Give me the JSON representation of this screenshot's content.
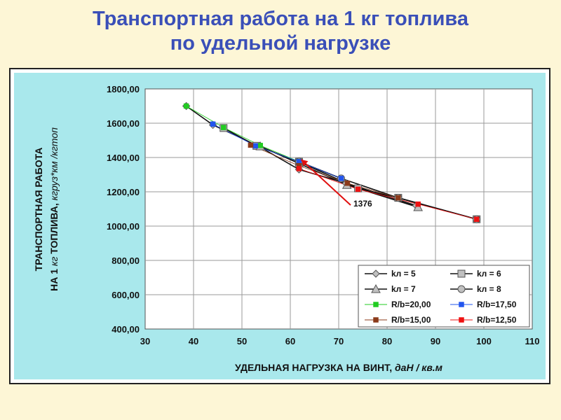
{
  "slide": {
    "title_line1": "Транспортная работа на 1 кг топлива",
    "title_line2": "по удельной нагрузке"
  },
  "chart_data": {
    "type": "line",
    "xlabel_main": "УДЕЛЬНАЯ НАГРУЗКА НА ВИНТ, ",
    "xlabel_unit": "даН / кв.м",
    "ylabel_line1": "ТРАНСПОРТНАЯ РАБОТА",
    "ylabel_line2_main": "НА 1 ",
    "ylabel_line2_unit1": "кг",
    "ylabel_line2_mid": " ТОПЛИВА, ",
    "ylabel_line2_unit2": "кгруз*км /кгтоп",
    "xlim": [
      30,
      110
    ],
    "ylim": [
      400,
      1800
    ],
    "xticks": [
      30,
      40,
      50,
      60,
      70,
      80,
      90,
      100,
      110
    ],
    "yticks": [
      400,
      600,
      800,
      1000,
      1200,
      1400,
      1600,
      1800
    ],
    "ytick_labels": [
      "400,00",
      "600,00",
      "800,00",
      "1000,00",
      "1200,00",
      "1400,00",
      "1600,00",
      "1800,00"
    ],
    "grid": true,
    "series": [
      {
        "name": "kл = 5",
        "marker": "diamond",
        "color": "#111111",
        "x": [
          38.5,
          44,
          53.5,
          61.8,
          71.5,
          86
        ],
        "y": [
          1700,
          1590,
          1465,
          1330,
          1250,
          1120
        ]
      },
      {
        "name": "kл = 6",
        "marker": "square",
        "color": "#111111",
        "x": [
          46.2,
          53,
          61.8,
          74,
          82.3,
          98.5
        ],
        "y": [
          1572,
          1468,
          1375,
          1220,
          1165,
          1040
        ]
      },
      {
        "name": "kл = 7",
        "marker": "triangle",
        "color": "#111111",
        "x": [
          53.8,
          61.8,
          71.7,
          86.4
        ],
        "y": [
          1465,
          1365,
          1240,
          1110
        ]
      },
      {
        "name": "kл = 8",
        "marker": "circle",
        "color": "#111111",
        "x": [
          61.8,
          70.5,
          82.3,
          98.5
        ],
        "y": [
          1376,
          1278,
          1165,
          1040
        ]
      },
      {
        "name": "R/b=20,00",
        "marker": "small-square",
        "color": "#22cc22",
        "x": [
          38.5,
          46.2,
          53.8,
          61.8
        ],
        "y": [
          1700,
          1575,
          1470,
          1376
        ]
      },
      {
        "name": "R/b=17,50",
        "marker": "small-square",
        "color": "#2255ee",
        "x": [
          44,
          52.8,
          61.8,
          70.5
        ],
        "y": [
          1595,
          1468,
          1376,
          1278
        ]
      },
      {
        "name": "R/b=15,00",
        "marker": "small-square",
        "color": "#8b3a1a",
        "x": [
          51.8,
          61.8,
          71.8,
          82.3
        ],
        "y": [
          1472,
          1352,
          1250,
          1165
        ]
      },
      {
        "name": "R/b=12,50",
        "marker": "small-square",
        "color": "#ee1111",
        "x": [
          61.8,
          74,
          86.4,
          98.5
        ],
        "y": [
          1335,
          1215,
          1128,
          1040
        ]
      }
    ],
    "annotation": {
      "text": "1376",
      "x": 61.8,
      "y": 1376,
      "color": "#e01010"
    },
    "legend_position": "bottom-right"
  }
}
